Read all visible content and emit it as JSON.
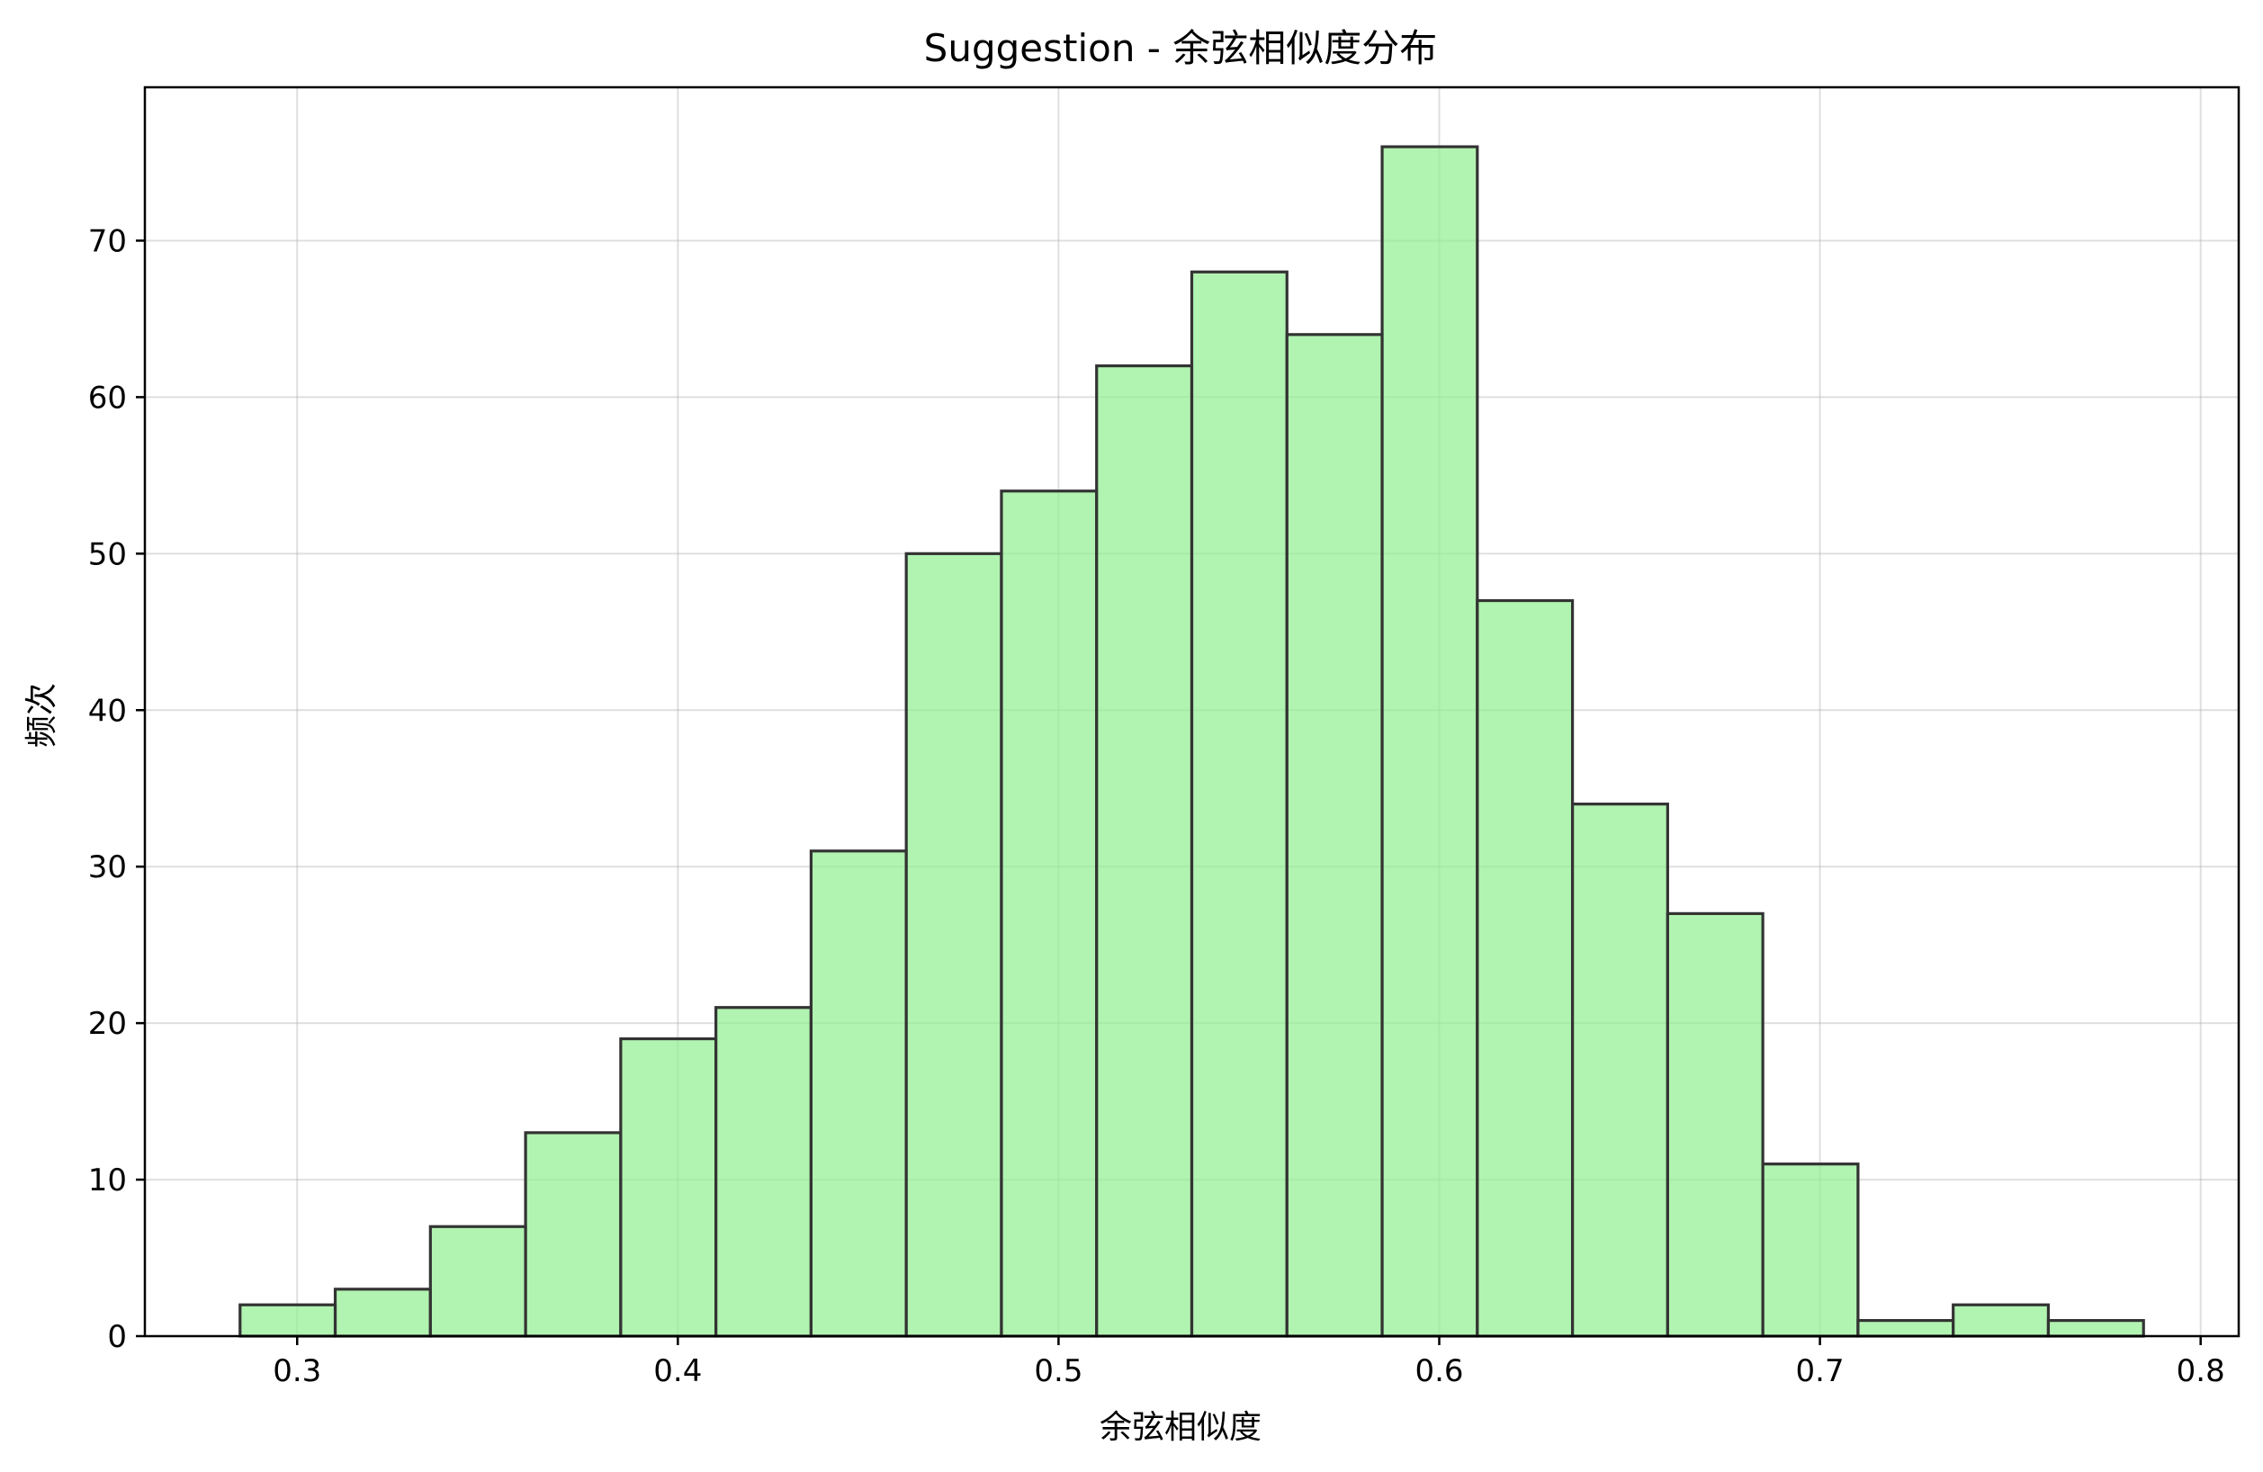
{
  "chart_data": {
    "type": "bar",
    "title": "Suggestion - 余弦相似度分布",
    "xlabel": "余弦相似度",
    "ylabel": "频次",
    "xlim": [
      0.26,
      0.81
    ],
    "ylim": [
      0,
      79.8
    ],
    "x_ticks": [
      0.3,
      0.4,
      0.5,
      0.6,
      0.7,
      0.8
    ],
    "x_tick_labels": [
      "0.3",
      "0.4",
      "0.5",
      "0.6",
      "0.7",
      "0.8"
    ],
    "y_ticks": [
      0,
      10,
      20,
      30,
      40,
      50,
      60,
      70
    ],
    "y_tick_labels": [
      "0",
      "10",
      "20",
      "30",
      "40",
      "50",
      "60",
      "70"
    ],
    "bin_edges": [
      0.285,
      0.31,
      0.335,
      0.36,
      0.385,
      0.41,
      0.435,
      0.46,
      0.485,
      0.51,
      0.535,
      0.56,
      0.585,
      0.61,
      0.635,
      0.66,
      0.685,
      0.71,
      0.735,
      0.76,
      0.785
    ],
    "values": [
      2,
      3,
      7,
      13,
      19,
      21,
      31,
      50,
      54,
      62,
      68,
      64,
      76,
      47,
      34,
      27,
      11,
      1,
      2,
      1
    ],
    "grid": true,
    "bar_color": "#90ee90",
    "edge_color": "#333333"
  }
}
